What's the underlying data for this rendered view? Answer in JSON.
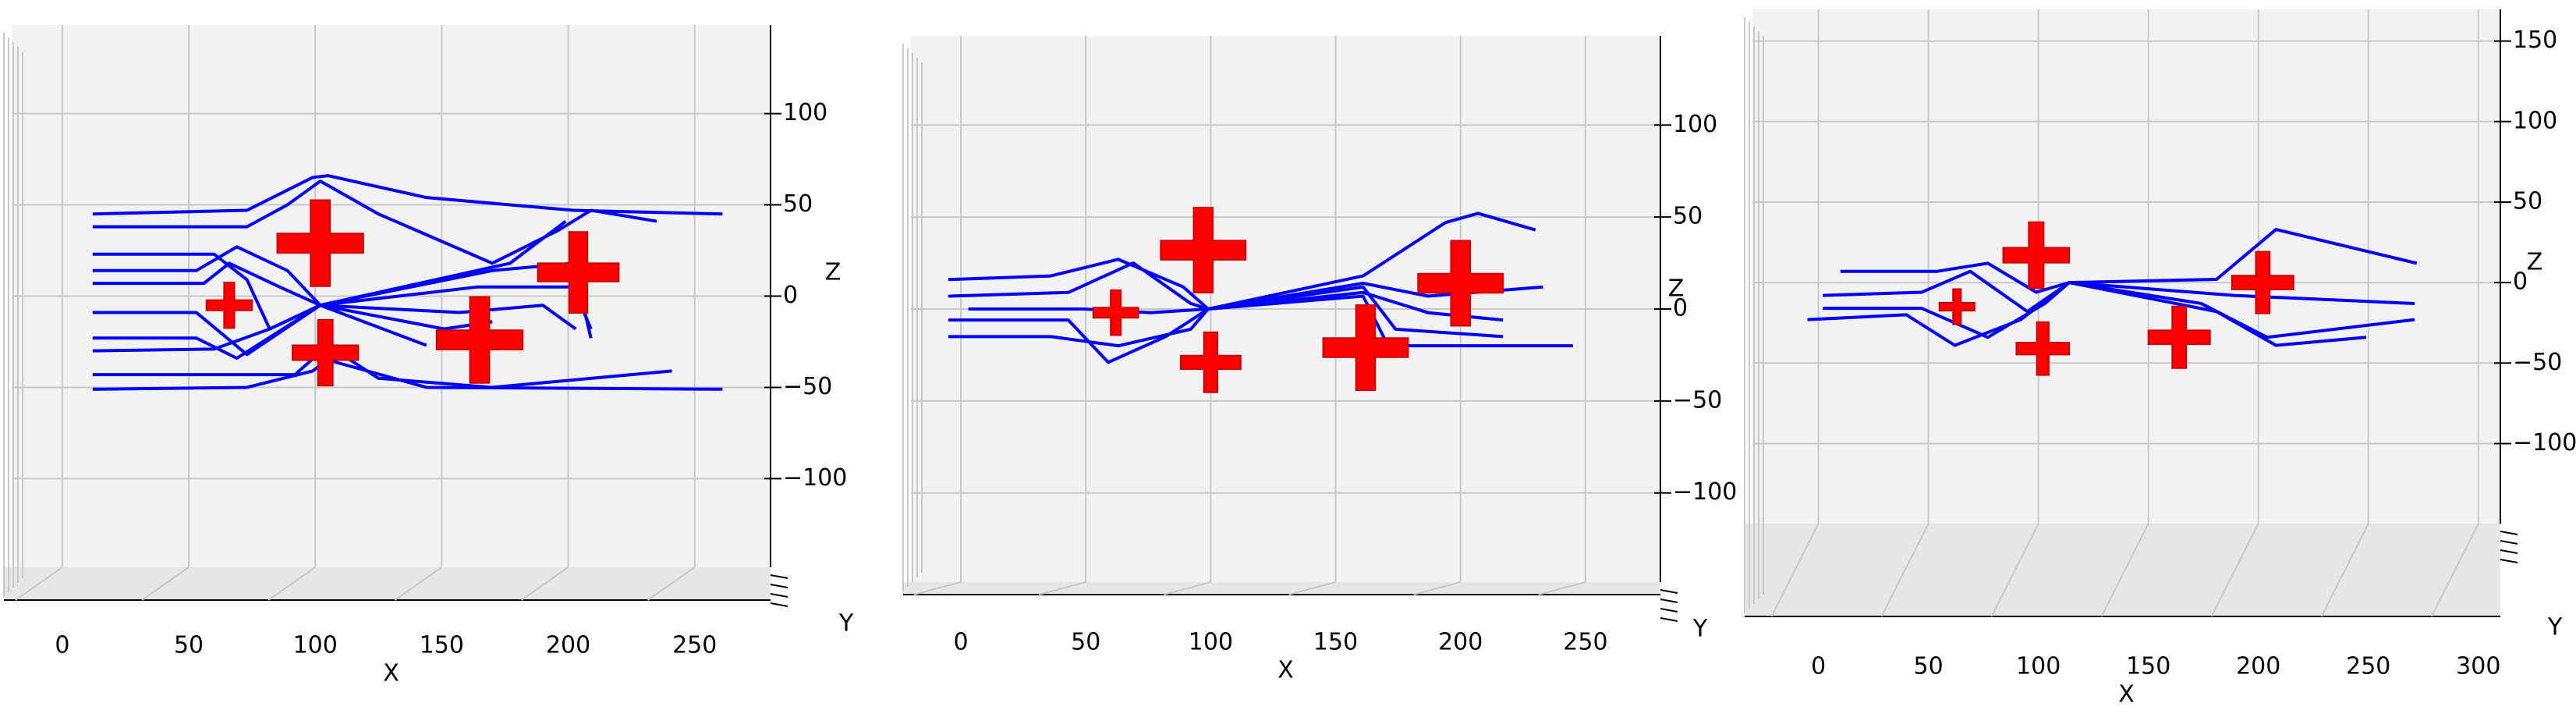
{
  "chart_data": [
    {
      "type": "line",
      "xlabel": "X",
      "ylabel": "Y",
      "zlabel": "Z",
      "xlim": [
        -20,
        280
      ],
      "xticks": [
        0,
        50,
        100,
        150,
        200,
        250
      ],
      "zlim": [
        -140,
        140
      ],
      "zticks": [
        {
          "value": -100,
          "label": "−100"
        },
        {
          "value": -50,
          "label": "−50"
        },
        0,
        50,
        100
      ],
      "series": [
        {
          "color": "#0000ff",
          "x": [
            12,
            73,
            99,
            105,
            144,
            202,
            261
          ],
          "values": [
            45,
            47,
            65,
            66,
            54,
            47,
            45
          ]
        },
        {
          "color": "#0000ff",
          "x": [
            12,
            73,
            89,
            102,
            125,
            170,
            196,
            209,
            235
          ],
          "values": [
            38,
            38,
            50,
            63,
            45,
            18,
            36,
            47,
            41
          ]
        },
        {
          "color": "#0000ff",
          "x": [
            12,
            73,
            99,
            105,
            144,
            261
          ],
          "values": [
            -51,
            -50,
            -41,
            -35,
            -50,
            -51
          ]
        },
        {
          "color": "#0000ff",
          "x": [
            12,
            92,
            105,
            125,
            170,
            241
          ],
          "values": [
            -43,
            -43,
            -27,
            -45,
            -50,
            -41
          ]
        },
        {
          "color": "#0000ff",
          "x": [
            12,
            60,
            73,
            82,
            102,
            170,
            202,
            209
          ],
          "values": [
            23,
            23,
            9,
            -18,
            -5,
            14,
            18,
            -23
          ]
        },
        {
          "color": "#0000ff",
          "x": [
            12,
            53,
            69,
            89,
            102,
            164,
            202,
            209
          ],
          "values": [
            14,
            14,
            27,
            14,
            -5,
            5,
            5,
            -18
          ]
        },
        {
          "color": "#0000ff",
          "x": [
            12,
            53,
            73,
            102,
            157,
            190,
            203
          ],
          "values": [
            -9,
            -9,
            -32,
            -5,
            -9,
            -5,
            -18
          ]
        },
        {
          "color": "#0000ff",
          "x": [
            12,
            53,
            69,
            102,
            151,
            170
          ],
          "values": [
            -23,
            -23,
            -34,
            -5,
            -18,
            -14
          ]
        },
        {
          "color": "#0000ff",
          "x": [
            12,
            60,
            82,
            102,
            144
          ],
          "values": [
            -30,
            -29,
            -18,
            -5,
            -27
          ]
        },
        {
          "color": "#0000ff",
          "x": [
            12,
            56,
            66,
            86,
            102,
            177,
            199
          ],
          "values": [
            7,
            7,
            18,
            5,
            -5,
            18,
            41
          ]
        }
      ],
      "obstacles": {
        "color": "#ff0000",
        "x": [
          102,
          66,
          104,
          165,
          204
        ],
        "values": [
          29,
          -5,
          -31,
          -24,
          13
        ],
        "sizes": [
          17,
          9,
          13,
          17,
          16
        ]
      }
    },
    {
      "type": "line",
      "xlabel": "X",
      "ylabel": "Y",
      "zlabel": "Z",
      "xlim": [
        -20,
        280
      ],
      "xticks": [
        0,
        50,
        100,
        150,
        200,
        250
      ],
      "zlim": [
        -140,
        140
      ],
      "zticks": [
        {
          "value": -100,
          "label": "−100"
        },
        {
          "value": -50,
          "label": "−50"
        },
        0,
        50,
        100
      ],
      "series": [
        {
          "color": "#0000ff",
          "x": [
            -5,
            36,
            63,
            89,
            99,
            161,
            194,
            207,
            230
          ],
          "values": [
            16,
            18,
            27,
            12,
            0,
            18,
            47,
            52,
            43
          ]
        },
        {
          "color": "#0000ff",
          "x": [
            -5,
            43,
            69,
            92,
            99,
            161,
            187,
            233
          ],
          "values": [
            7,
            9,
            25,
            3,
            0,
            14,
            7,
            12
          ]
        },
        {
          "color": "#0000ff",
          "x": [
            -5,
            43,
            59,
            82,
            99,
            161,
            174,
            217
          ],
          "values": [
            -6,
            -6,
            -29,
            -15,
            0,
            12,
            -11,
            -15
          ]
        },
        {
          "color": "#0000ff",
          "x": [
            -5,
            36,
            63,
            92,
            99,
            161,
            171,
            245
          ],
          "values": [
            -15,
            -15,
            -20,
            -11,
            0,
            7,
            -20,
            -20
          ]
        },
        {
          "color": "#0000ff",
          "x": [
            3,
            49,
            76,
            99,
            161,
            187,
            217
          ],
          "values": [
            0,
            0,
            -2,
            0,
            9,
            -2,
            -6
          ]
        }
      ],
      "obstacles": {
        "color": "#ff0000",
        "x": [
          97,
          62,
          100,
          162,
          200
        ],
        "values": [
          32,
          -2,
          -29,
          -21,
          14
        ],
        "sizes": [
          17,
          9,
          12,
          17,
          17
        ]
      }
    },
    {
      "type": "line",
      "xlabel": "X",
      "ylabel": "Y",
      "zlabel": "Z",
      "xlim": [
        -30,
        310
      ],
      "xticks": [
        0,
        50,
        100,
        150,
        200,
        250,
        300
      ],
      "zlim": [
        -140,
        160
      ],
      "zticks": [
        {
          "value": -100,
          "label": "−100"
        },
        {
          "value": -50,
          "label": "−50"
        },
        0,
        50,
        100,
        150
      ],
      "series": [
        {
          "color": "#0000ff",
          "x": [
            10,
            54,
            77,
            99,
            114,
            181,
            208,
            272
          ],
          "values": [
            7,
            7,
            12,
            -6,
            0,
            2,
            33,
            12
          ]
        },
        {
          "color": "#0000ff",
          "x": [
            2,
            47,
            69,
            95,
            114,
            189,
            271
          ],
          "values": [
            -8,
            -6,
            7,
            -18,
            0,
            -8,
            -13
          ]
        },
        {
          "color": "#0000ff",
          "x": [
            -5,
            40,
            62,
            92,
            114,
            174,
            204,
            271
          ],
          "values": [
            -23,
            -20,
            -39,
            -23,
            0,
            -13,
            -34,
            -23
          ]
        },
        {
          "color": "#0000ff",
          "x": [
            2,
            47,
            77,
            103,
            114,
            181,
            208,
            249
          ],
          "values": [
            -16,
            -16,
            -34,
            -13,
            0,
            -18,
            -39,
            -34
          ]
        }
      ],
      "obstacles": {
        "color": "#ff0000",
        "x": [
          99,
          63,
          102,
          164,
          202
        ],
        "values": [
          17,
          -15,
          -41,
          -34,
          0
        ],
        "sizes": [
          15,
          8,
          12,
          14,
          14
        ]
      }
    }
  ]
}
